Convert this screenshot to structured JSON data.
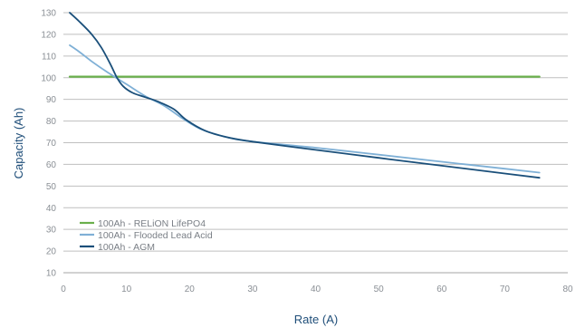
{
  "chart_data": {
    "type": "line",
    "xlabel": "Rate (A)",
    "ylabel": "Capacity (Ah)",
    "xlim": [
      0,
      80
    ],
    "ylim": [
      10,
      130
    ],
    "x_ticks": [
      "0",
      "10",
      "20",
      "30",
      "40",
      "50",
      "60",
      "70",
      "80"
    ],
    "y_ticks": [
      "10",
      "20",
      "30",
      "40",
      "50",
      "60",
      "70",
      "80",
      "90",
      "100",
      "110",
      "120",
      "130"
    ],
    "grid": "horizontal",
    "legend_position": "bottom-left",
    "series": [
      {
        "name": "100Ah - RELiON LifePO4",
        "color": "#6ab04c",
        "points": [
          [
            1,
            100.5
          ],
          [
            75.5,
            100.5
          ]
        ]
      },
      {
        "name": "100Ah - Flooded Lead Acid",
        "color": "#7fb0d6",
        "points": [
          [
            1,
            115
          ],
          [
            2.5,
            112
          ],
          [
            4.5,
            107.5
          ],
          [
            7,
            102.5
          ],
          [
            10,
            97
          ],
          [
            13,
            91.5
          ],
          [
            16,
            87
          ],
          [
            19,
            81
          ],
          [
            22,
            76
          ],
          [
            26,
            72.5
          ],
          [
            30,
            70.5
          ],
          [
            40,
            67.7
          ],
          [
            50,
            64.5
          ],
          [
            60,
            61.2
          ],
          [
            70,
            58
          ],
          [
            75.5,
            56.2
          ]
        ]
      },
      {
        "name": "100Ah - AGM",
        "color": "#1a4f7a",
        "points": [
          [
            1,
            130
          ],
          [
            2.5,
            126
          ],
          [
            4.5,
            120
          ],
          [
            6,
            114
          ],
          [
            7.5,
            106
          ],
          [
            8.5,
            100
          ],
          [
            9.5,
            96
          ],
          [
            11,
            93
          ],
          [
            13,
            91
          ],
          [
            15,
            89
          ],
          [
            17.5,
            85.5
          ],
          [
            19.5,
            80.5
          ],
          [
            22.5,
            75.5
          ],
          [
            26,
            72.5
          ],
          [
            30,
            70.5
          ],
          [
            40,
            66.7
          ],
          [
            50,
            63
          ],
          [
            60,
            59.4
          ],
          [
            70,
            55.8
          ],
          [
            75.5,
            53.8
          ]
        ]
      }
    ]
  }
}
